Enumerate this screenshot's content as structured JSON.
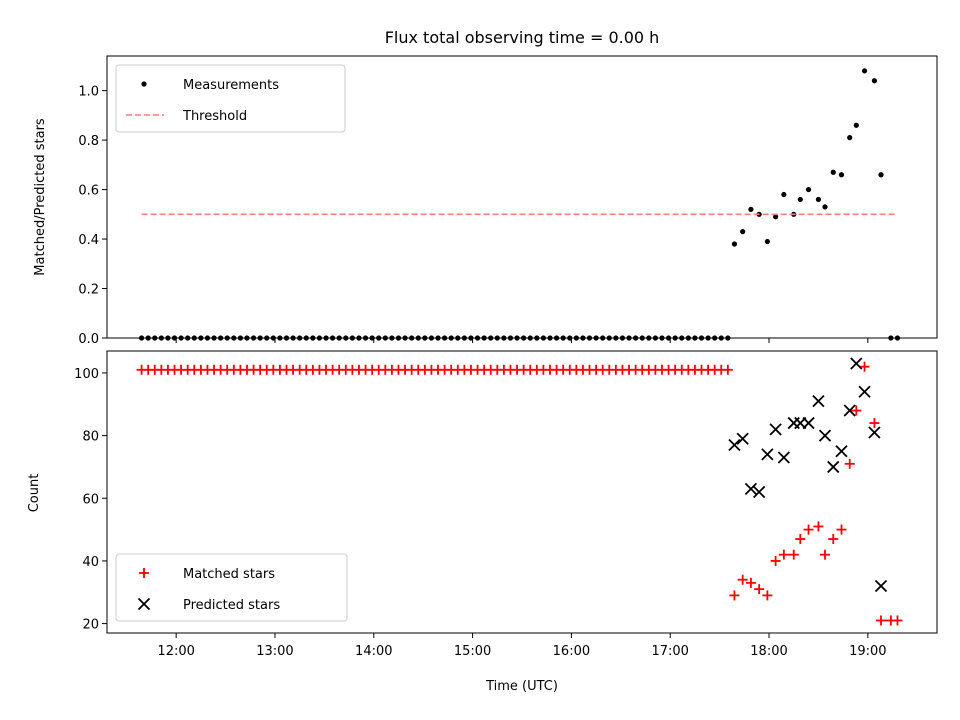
{
  "chart_data": [
    {
      "type": "scatter",
      "title": "Flux total observing time = 0.00 h",
      "xlabel": "",
      "ylabel": "Matched/Predicted stars",
      "xlim": [
        "11:18",
        "19:42"
      ],
      "ylim": [
        0,
        1.14
      ],
      "yticks": [
        0.0,
        0.2,
        0.4,
        0.6,
        0.8,
        1.0
      ],
      "ytick_labels": [
        "0.0",
        "0.2",
        "0.4",
        "0.6",
        "0.8",
        "1.0"
      ],
      "xticks": [
        "12:00",
        "13:00",
        "14:00",
        "15:00",
        "16:00",
        "17:00",
        "18:00",
        "19:00"
      ],
      "legend": {
        "position": "upper left",
        "entries": [
          "Measurements",
          "Threshold"
        ]
      },
      "series": [
        {
          "name": "Measurements",
          "marker": "dot",
          "color": "#000000",
          "points": [
            [
              "11:39",
              0
            ],
            [
              "11:43",
              0
            ],
            [
              "11:47",
              0
            ],
            [
              "11:51",
              0
            ],
            [
              "11:55",
              0
            ],
            [
              "11:59",
              0
            ],
            [
              "12:03",
              0
            ],
            [
              "12:07",
              0
            ],
            [
              "12:11",
              0
            ],
            [
              "12:15",
              0
            ],
            [
              "12:19",
              0
            ],
            [
              "12:23",
              0
            ],
            [
              "12:27",
              0
            ],
            [
              "12:31",
              0
            ],
            [
              "12:35",
              0
            ],
            [
              "12:39",
              0
            ],
            [
              "12:43",
              0
            ],
            [
              "12:47",
              0
            ],
            [
              "12:51",
              0
            ],
            [
              "12:55",
              0
            ],
            [
              "12:59",
              0
            ],
            [
              "13:03",
              0
            ],
            [
              "13:07",
              0
            ],
            [
              "13:11",
              0
            ],
            [
              "13:15",
              0
            ],
            [
              "13:19",
              0
            ],
            [
              "13:23",
              0
            ],
            [
              "13:27",
              0
            ],
            [
              "13:31",
              0
            ],
            [
              "13:35",
              0
            ],
            [
              "13:39",
              0
            ],
            [
              "13:43",
              0
            ],
            [
              "13:47",
              0
            ],
            [
              "13:51",
              0
            ],
            [
              "13:55",
              0
            ],
            [
              "13:59",
              0
            ],
            [
              "14:03",
              0
            ],
            [
              "14:07",
              0
            ],
            [
              "14:11",
              0
            ],
            [
              "14:15",
              0
            ],
            [
              "14:19",
              0
            ],
            [
              "14:23",
              0
            ],
            [
              "14:27",
              0
            ],
            [
              "14:31",
              0
            ],
            [
              "14:35",
              0
            ],
            [
              "14:39",
              0
            ],
            [
              "14:43",
              0
            ],
            [
              "14:47",
              0
            ],
            [
              "14:51",
              0
            ],
            [
              "14:55",
              0
            ],
            [
              "14:59",
              0
            ],
            [
              "15:03",
              0
            ],
            [
              "15:07",
              0
            ],
            [
              "15:11",
              0
            ],
            [
              "15:15",
              0
            ],
            [
              "15:19",
              0
            ],
            [
              "15:23",
              0
            ],
            [
              "15:27",
              0
            ],
            [
              "15:31",
              0
            ],
            [
              "15:35",
              0
            ],
            [
              "15:39",
              0
            ],
            [
              "15:43",
              0
            ],
            [
              "15:47",
              0
            ],
            [
              "15:51",
              0
            ],
            [
              "15:55",
              0
            ],
            [
              "15:59",
              0
            ],
            [
              "16:03",
              0
            ],
            [
              "16:07",
              0
            ],
            [
              "16:11",
              0
            ],
            [
              "16:15",
              0
            ],
            [
              "16:19",
              0
            ],
            [
              "16:23",
              0
            ],
            [
              "16:27",
              0
            ],
            [
              "16:31",
              0
            ],
            [
              "16:35",
              0
            ],
            [
              "16:39",
              0
            ],
            [
              "16:43",
              0
            ],
            [
              "16:47",
              0
            ],
            [
              "16:51",
              0
            ],
            [
              "16:55",
              0
            ],
            [
              "16:59",
              0
            ],
            [
              "17:03",
              0
            ],
            [
              "17:07",
              0
            ],
            [
              "17:11",
              0
            ],
            [
              "17:15",
              0
            ],
            [
              "17:19",
              0
            ],
            [
              "17:23",
              0
            ],
            [
              "17:27",
              0
            ],
            [
              "17:31",
              0
            ],
            [
              "17:35",
              0
            ],
            [
              "17:39",
              0.38
            ],
            [
              "17:44",
              0.43
            ],
            [
              "17:49",
              0.52
            ],
            [
              "17:54",
              0.5
            ],
            [
              "17:59",
              0.39
            ],
            [
              "18:04",
              0.49
            ],
            [
              "18:09",
              0.58
            ],
            [
              "18:15",
              0.5
            ],
            [
              "18:19",
              0.56
            ],
            [
              "18:24",
              0.6
            ],
            [
              "18:30",
              0.56
            ],
            [
              "18:34",
              0.53
            ],
            [
              "18:39",
              0.67
            ],
            [
              "18:44",
              0.66
            ],
            [
              "18:49",
              0.81
            ],
            [
              "18:53",
              0.86
            ],
            [
              "18:58",
              1.08
            ],
            [
              "19:04",
              1.04
            ],
            [
              "19:08",
              0.66
            ],
            [
              "19:14",
              0
            ],
            [
              "19:18",
              0
            ]
          ]
        },
        {
          "name": "Threshold",
          "style": "dashed",
          "color": "#ff7f7f",
          "points": [
            [
              "11:39",
              0.5
            ],
            [
              "19:18",
              0.5
            ]
          ]
        }
      ]
    },
    {
      "type": "scatter",
      "title": "",
      "xlabel": "Time (UTC)",
      "ylabel": "Count",
      "xlim": [
        "11:18",
        "19:42"
      ],
      "ylim": [
        17,
        107
      ],
      "yticks": [
        20,
        40,
        60,
        80,
        100
      ],
      "ytick_labels": [
        "20",
        "40",
        "60",
        "80",
        "100"
      ],
      "xticks": [
        "12:00",
        "13:00",
        "14:00",
        "15:00",
        "16:00",
        "17:00",
        "18:00",
        "19:00"
      ],
      "xtick_labels": [
        "12:00",
        "13:00",
        "14:00",
        "15:00",
        "16:00",
        "17:00",
        "18:00",
        "19:00"
      ],
      "legend": {
        "position": "lower left",
        "entries": [
          "Matched stars",
          "Predicted stars"
        ]
      },
      "series": [
        {
          "name": "Matched stars",
          "marker": "plus",
          "color": "#ff0000",
          "points": [
            [
              "11:39",
              101
            ],
            [
              "11:43",
              101
            ],
            [
              "11:47",
              101
            ],
            [
              "11:51",
              101
            ],
            [
              "11:55",
              101
            ],
            [
              "11:59",
              101
            ],
            [
              "12:03",
              101
            ],
            [
              "12:07",
              101
            ],
            [
              "12:11",
              101
            ],
            [
              "12:15",
              101
            ],
            [
              "12:19",
              101
            ],
            [
              "12:23",
              101
            ],
            [
              "12:27",
              101
            ],
            [
              "12:31",
              101
            ],
            [
              "12:35",
              101
            ],
            [
              "12:39",
              101
            ],
            [
              "12:43",
              101
            ],
            [
              "12:47",
              101
            ],
            [
              "12:51",
              101
            ],
            [
              "12:55",
              101
            ],
            [
              "12:59",
              101
            ],
            [
              "13:03",
              101
            ],
            [
              "13:07",
              101
            ],
            [
              "13:11",
              101
            ],
            [
              "13:15",
              101
            ],
            [
              "13:19",
              101
            ],
            [
              "13:23",
              101
            ],
            [
              "13:27",
              101
            ],
            [
              "13:31",
              101
            ],
            [
              "13:35",
              101
            ],
            [
              "13:39",
              101
            ],
            [
              "13:43",
              101
            ],
            [
              "13:47",
              101
            ],
            [
              "13:51",
              101
            ],
            [
              "13:55",
              101
            ],
            [
              "13:59",
              101
            ],
            [
              "14:03",
              101
            ],
            [
              "14:07",
              101
            ],
            [
              "14:11",
              101
            ],
            [
              "14:15",
              101
            ],
            [
              "14:19",
              101
            ],
            [
              "14:23",
              101
            ],
            [
              "14:27",
              101
            ],
            [
              "14:31",
              101
            ],
            [
              "14:35",
              101
            ],
            [
              "14:39",
              101
            ],
            [
              "14:43",
              101
            ],
            [
              "14:47",
              101
            ],
            [
              "14:51",
              101
            ],
            [
              "14:55",
              101
            ],
            [
              "14:59",
              101
            ],
            [
              "15:03",
              101
            ],
            [
              "15:07",
              101
            ],
            [
              "15:11",
              101
            ],
            [
              "15:15",
              101
            ],
            [
              "15:19",
              101
            ],
            [
              "15:23",
              101
            ],
            [
              "15:27",
              101
            ],
            [
              "15:31",
              101
            ],
            [
              "15:35",
              101
            ],
            [
              "15:39",
              101
            ],
            [
              "15:43",
              101
            ],
            [
              "15:47",
              101
            ],
            [
              "15:51",
              101
            ],
            [
              "15:55",
              101
            ],
            [
              "15:59",
              101
            ],
            [
              "16:03",
              101
            ],
            [
              "16:07",
              101
            ],
            [
              "16:11",
              101
            ],
            [
              "16:15",
              101
            ],
            [
              "16:19",
              101
            ],
            [
              "16:23",
              101
            ],
            [
              "16:27",
              101
            ],
            [
              "16:31",
              101
            ],
            [
              "16:35",
              101
            ],
            [
              "16:39",
              101
            ],
            [
              "16:43",
              101
            ],
            [
              "16:47",
              101
            ],
            [
              "16:51",
              101
            ],
            [
              "16:55",
              101
            ],
            [
              "16:59",
              101
            ],
            [
              "17:03",
              101
            ],
            [
              "17:07",
              101
            ],
            [
              "17:11",
              101
            ],
            [
              "17:15",
              101
            ],
            [
              "17:19",
              101
            ],
            [
              "17:23",
              101
            ],
            [
              "17:27",
              101
            ],
            [
              "17:31",
              101
            ],
            [
              "17:35",
              101
            ],
            [
              "17:39",
              29
            ],
            [
              "17:44",
              34
            ],
            [
              "17:49",
              33
            ],
            [
              "17:54",
              31
            ],
            [
              "17:59",
              29
            ],
            [
              "18:04",
              40
            ],
            [
              "18:09",
              42
            ],
            [
              "18:15",
              42
            ],
            [
              "18:19",
              47
            ],
            [
              "18:24",
              50
            ],
            [
              "18:30",
              51
            ],
            [
              "18:34",
              42
            ],
            [
              "18:39",
              47
            ],
            [
              "18:44",
              50
            ],
            [
              "18:49",
              71
            ],
            [
              "18:53",
              88
            ],
            [
              "18:58",
              102
            ],
            [
              "19:04",
              84
            ],
            [
              "19:08",
              21
            ],
            [
              "19:14",
              21
            ],
            [
              "19:18",
              21
            ]
          ]
        },
        {
          "name": "Predicted stars",
          "marker": "x",
          "color": "#000000",
          "points": [
            [
              "17:39",
              77
            ],
            [
              "17:44",
              79
            ],
            [
              "17:49",
              63
            ],
            [
              "17:54",
              62
            ],
            [
              "17:59",
              74
            ],
            [
              "18:04",
              82
            ],
            [
              "18:09",
              73
            ],
            [
              "18:15",
              84
            ],
            [
              "18:19",
              84
            ],
            [
              "18:24",
              84
            ],
            [
              "18:30",
              91
            ],
            [
              "18:34",
              80
            ],
            [
              "18:39",
              70
            ],
            [
              "18:44",
              75
            ],
            [
              "18:49",
              88
            ],
            [
              "18:53",
              103
            ],
            [
              "18:58",
              94
            ],
            [
              "19:04",
              81
            ],
            [
              "19:08",
              32
            ]
          ]
        }
      ]
    }
  ]
}
